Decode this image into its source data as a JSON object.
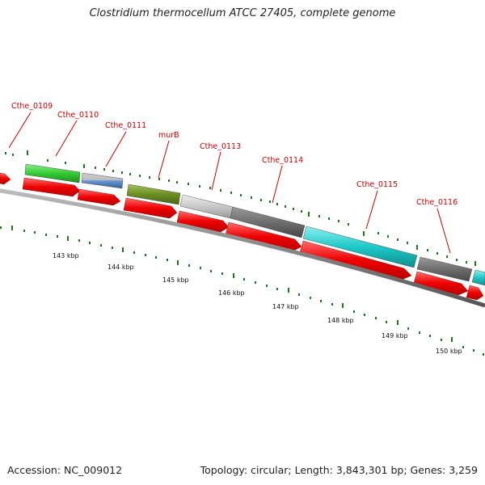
{
  "title": "Clostridium thermocellum ATCC 27405, complete genome",
  "footer": {
    "accession": "Accession: NC_009012",
    "summary": "Topology: circular; Length: 3,843,301 bp; Genes: 3,259"
  },
  "scale_labels": [
    "143 kbp",
    "144 kbp",
    "145 kbp",
    "146 kbp",
    "147 kbp",
    "148 kbp",
    "149 kbp",
    "150 kbp"
  ],
  "gene_labels": [
    "Cthe_0109",
    "Cthe_0110",
    "Cthe_0111",
    "murB",
    "Cthe_0113",
    "Cthe_0114",
    "Cthe_0115",
    "Cthe_0116"
  ],
  "colors": {
    "cds": "#ff0000",
    "label": "#cc0000",
    "backbone": "#888888",
    "ticks": "#1a7a1a",
    "green": "#33cc33",
    "blue": "#4f86c6",
    "olive": "#6b8e23",
    "light_gray": "#c8c8c8",
    "dark_gray": "#6e6e6e",
    "cyan": "#1ec8c8"
  }
}
